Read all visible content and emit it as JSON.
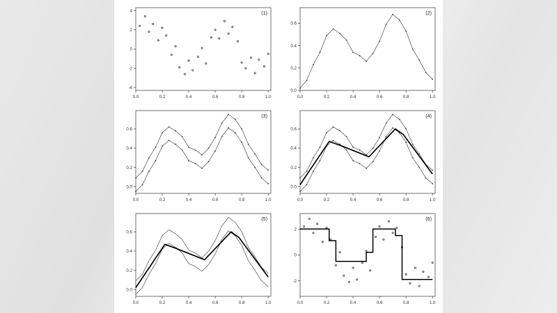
{
  "page": {
    "background_color": "#e7e7e7",
    "sheet_color": "#ffffff",
    "axis_color": "#333333",
    "curve_color": "#555555",
    "bold_color": "#000000"
  },
  "chart_data": [
    {
      "label": "(1)",
      "type": "scatter",
      "xlim": [
        0,
        1.02
      ],
      "ylim": [
        -4.3,
        4.3
      ],
      "xticks": [
        0.0,
        0.2,
        0.4,
        0.6,
        0.8,
        1.0
      ],
      "yticks": [
        -4,
        -2,
        0,
        2,
        4
      ],
      "grid": false,
      "legend": "none",
      "series": [
        {
          "name": "noisy-data-points",
          "type": "points",
          "x": [
            0.03,
            0.07,
            0.1,
            0.13,
            0.17,
            0.2,
            0.23,
            0.27,
            0.3,
            0.33,
            0.37,
            0.4,
            0.43,
            0.47,
            0.5,
            0.53,
            0.57,
            0.6,
            0.63,
            0.67,
            0.7,
            0.73,
            0.77,
            0.8,
            0.83,
            0.87,
            0.9,
            0.93,
            0.97,
            1.0
          ],
          "y": [
            2.4,
            3.4,
            1.8,
            2.6,
            0.9,
            2.2,
            1.4,
            -0.6,
            0.3,
            -1.9,
            -2.6,
            -1.2,
            -2.2,
            -0.8,
            0.1,
            -1.5,
            1.2,
            2.0,
            1.1,
            2.9,
            1.6,
            2.3,
            0.8,
            -1.4,
            -2.0,
            -0.9,
            -2.5,
            -1.1,
            -1.8,
            -0.5
          ]
        }
      ]
    },
    {
      "label": "(2)",
      "type": "line",
      "xlim": [
        0,
        1.02
      ],
      "ylim": [
        0,
        0.74
      ],
      "xticks": [
        0.0,
        0.2,
        0.4,
        0.6,
        0.8,
        1.0
      ],
      "yticks": [
        0.0,
        0.2,
        0.4,
        0.6
      ],
      "grid": false,
      "legend": "none",
      "series": [
        {
          "name": "bimodal-curve",
          "type": "line-points",
          "x": [
            0,
            0.05,
            0.1,
            0.15,
            0.2,
            0.25,
            0.3,
            0.35,
            0.4,
            0.45,
            0.5,
            0.55,
            0.6,
            0.65,
            0.7,
            0.75,
            0.8,
            0.85,
            0.9,
            0.95,
            1.0
          ],
          "y": [
            0.02,
            0.09,
            0.23,
            0.34,
            0.49,
            0.55,
            0.51,
            0.45,
            0.34,
            0.31,
            0.26,
            0.33,
            0.44,
            0.59,
            0.68,
            0.63,
            0.53,
            0.37,
            0.27,
            0.16,
            0.1
          ]
        }
      ]
    },
    {
      "label": "(3)",
      "type": "line",
      "xlim": [
        0,
        1.02
      ],
      "ylim": [
        -0.07,
        0.79
      ],
      "xticks": [
        0.0,
        0.2,
        0.4,
        0.6,
        0.8,
        1.0
      ],
      "yticks": [
        0.0,
        0.2,
        0.4,
        0.6
      ],
      "grid": false,
      "legend": "none",
      "series": [
        {
          "name": "upper-tube-curve",
          "type": "line-points",
          "x": [
            0,
            0.05,
            0.1,
            0.15,
            0.2,
            0.25,
            0.3,
            0.35,
            0.4,
            0.45,
            0.5,
            0.55,
            0.6,
            0.65,
            0.7,
            0.75,
            0.8,
            0.85,
            0.9,
            0.95,
            1.0
          ],
          "y": [
            0.09,
            0.16,
            0.3,
            0.41,
            0.56,
            0.62,
            0.58,
            0.52,
            0.41,
            0.38,
            0.33,
            0.4,
            0.51,
            0.66,
            0.75,
            0.7,
            0.6,
            0.44,
            0.34,
            0.23,
            0.17
          ]
        },
        {
          "name": "lower-tube-curve",
          "type": "line-points",
          "x": [
            0,
            0.05,
            0.1,
            0.15,
            0.2,
            0.25,
            0.3,
            0.35,
            0.4,
            0.45,
            0.5,
            0.55,
            0.6,
            0.65,
            0.7,
            0.75,
            0.8,
            0.85,
            0.9,
            0.95,
            1.0
          ],
          "y": [
            -0.05,
            0.02,
            0.16,
            0.27,
            0.42,
            0.48,
            0.44,
            0.38,
            0.27,
            0.24,
            0.19,
            0.26,
            0.37,
            0.52,
            0.61,
            0.56,
            0.46,
            0.3,
            0.2,
            0.09,
            0.03
          ]
        }
      ]
    },
    {
      "label": "(4)",
      "type": "line",
      "xlim": [
        0,
        1.02
      ],
      "ylim": [
        -0.07,
        0.79
      ],
      "xticks": [
        0.0,
        0.2,
        0.4,
        0.6,
        0.8,
        1.0
      ],
      "yticks": [
        0.0,
        0.2,
        0.4,
        0.6
      ],
      "grid": false,
      "legend": "none",
      "series": [
        {
          "name": "upper-tube-curve",
          "type": "line-points",
          "x": [
            0,
            0.05,
            0.1,
            0.15,
            0.2,
            0.25,
            0.3,
            0.35,
            0.4,
            0.45,
            0.5,
            0.55,
            0.6,
            0.65,
            0.7,
            0.75,
            0.8,
            0.85,
            0.9,
            0.95,
            1.0
          ],
          "y": [
            0.09,
            0.16,
            0.3,
            0.41,
            0.56,
            0.62,
            0.58,
            0.52,
            0.41,
            0.38,
            0.33,
            0.4,
            0.51,
            0.66,
            0.75,
            0.7,
            0.6,
            0.44,
            0.34,
            0.23,
            0.17
          ]
        },
        {
          "name": "lower-tube-curve",
          "type": "line-points",
          "x": [
            0,
            0.05,
            0.1,
            0.15,
            0.2,
            0.25,
            0.3,
            0.35,
            0.4,
            0.45,
            0.5,
            0.55,
            0.6,
            0.65,
            0.7,
            0.75,
            0.8,
            0.85,
            0.9,
            0.95,
            1.0
          ],
          "y": [
            -0.05,
            0.02,
            0.16,
            0.27,
            0.42,
            0.48,
            0.44,
            0.38,
            0.27,
            0.24,
            0.19,
            0.26,
            0.37,
            0.52,
            0.61,
            0.56,
            0.46,
            0.3,
            0.2,
            0.09,
            0.03
          ]
        },
        {
          "name": "taut-string-fit",
          "type": "bold",
          "x": [
            0,
            0.22,
            0.3,
            0.52,
            0.72,
            0.78,
            1.0
          ],
          "y": [
            0.02,
            0.47,
            0.43,
            0.31,
            0.6,
            0.54,
            0.13
          ]
        }
      ]
    },
    {
      "label": "(5)",
      "type": "line",
      "xlim": [
        0,
        1.02
      ],
      "ylim": [
        -0.07,
        0.79
      ],
      "xticks": [
        0.0,
        0.2,
        0.4,
        0.6,
        0.8,
        1.0
      ],
      "yticks": [
        0.0,
        0.2,
        0.4,
        0.6
      ],
      "grid": false,
      "legend": "none",
      "series": [
        {
          "name": "upper-tube-line",
          "type": "line",
          "x": [
            0,
            0.05,
            0.1,
            0.15,
            0.2,
            0.25,
            0.3,
            0.35,
            0.4,
            0.45,
            0.5,
            0.55,
            0.6,
            0.65,
            0.7,
            0.75,
            0.8,
            0.85,
            0.9,
            0.95,
            1.0
          ],
          "y": [
            0.09,
            0.16,
            0.3,
            0.41,
            0.56,
            0.62,
            0.58,
            0.52,
            0.41,
            0.38,
            0.33,
            0.4,
            0.51,
            0.66,
            0.75,
            0.7,
            0.6,
            0.44,
            0.34,
            0.23,
            0.17
          ]
        },
        {
          "name": "lower-tube-line",
          "type": "line",
          "x": [
            0,
            0.05,
            0.1,
            0.15,
            0.2,
            0.25,
            0.3,
            0.35,
            0.4,
            0.45,
            0.5,
            0.55,
            0.6,
            0.65,
            0.7,
            0.75,
            0.8,
            0.85,
            0.9,
            0.95,
            1.0
          ],
          "y": [
            -0.05,
            0.02,
            0.16,
            0.27,
            0.42,
            0.48,
            0.44,
            0.38,
            0.27,
            0.24,
            0.19,
            0.26,
            0.37,
            0.52,
            0.61,
            0.56,
            0.46,
            0.3,
            0.2,
            0.09,
            0.03
          ]
        },
        {
          "name": "taut-string-fit",
          "type": "bold",
          "x": [
            0,
            0.22,
            0.3,
            0.52,
            0.72,
            0.78,
            1.0
          ],
          "y": [
            0.02,
            0.47,
            0.43,
            0.31,
            0.6,
            0.54,
            0.13
          ]
        }
      ]
    },
    {
      "label": "(6)",
      "type": "scatter",
      "xlim": [
        0,
        1.02
      ],
      "ylim": [
        -3.2,
        3.2
      ],
      "xticks": [
        0.0,
        0.2,
        0.4,
        0.6,
        0.8,
        1.0
      ],
      "yticks": [
        -2,
        0,
        2
      ],
      "grid": false,
      "legend": "none",
      "series": [
        {
          "name": "noisy-data-points",
          "type": "points",
          "x": [
            0.03,
            0.07,
            0.1,
            0.13,
            0.17,
            0.2,
            0.23,
            0.27,
            0.3,
            0.33,
            0.37,
            0.4,
            0.43,
            0.47,
            0.5,
            0.53,
            0.57,
            0.6,
            0.63,
            0.67,
            0.7,
            0.73,
            0.77,
            0.8,
            0.83,
            0.87,
            0.9,
            0.93,
            0.97,
            1.0
          ],
          "y": [
            2.2,
            2.8,
            1.7,
            2.4,
            1.0,
            2.1,
            1.2,
            -0.8,
            0.2,
            -1.6,
            -2.1,
            -1.0,
            -1.9,
            -0.6,
            0.3,
            -1.2,
            1.4,
            2.2,
            1.2,
            2.6,
            1.7,
            2.1,
            0.6,
            -1.5,
            -2.2,
            -1.0,
            -2.4,
            -1.3,
            -1.7,
            -0.6
          ]
        },
        {
          "name": "piecewise-constant-fit",
          "type": "step",
          "segments": [
            [
              0.0,
              0.22,
              2.0
            ],
            [
              0.22,
              0.27,
              1.1
            ],
            [
              0.27,
              0.5,
              -0.5
            ],
            [
              0.5,
              0.55,
              0.2
            ],
            [
              0.55,
              0.72,
              2.0
            ],
            [
              0.72,
              0.77,
              1.5
            ],
            [
              0.77,
              1.0,
              -1.9
            ]
          ]
        }
      ]
    }
  ]
}
